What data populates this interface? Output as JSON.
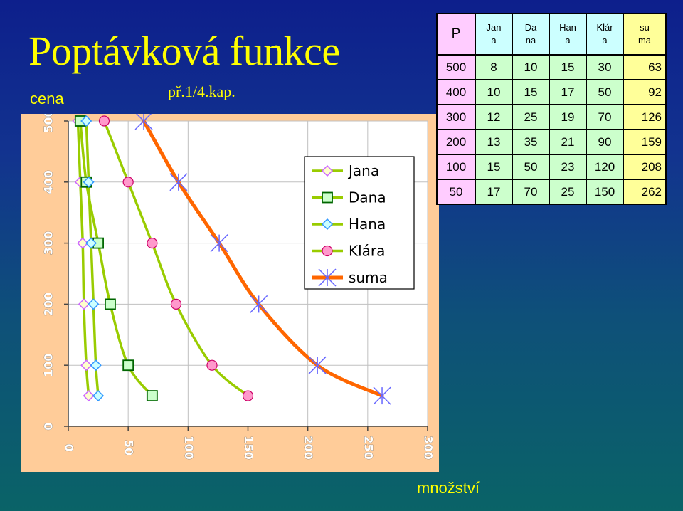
{
  "slide": {
    "title": "Poptávková funkce",
    "subtitle": "př.1/4.kap.",
    "y_axis_label": "cena",
    "x_axis_label": "množství"
  },
  "table": {
    "headers": [
      "P",
      "Jan\na",
      "Da\nna",
      "Han\na",
      "Klár\na",
      "su\nma"
    ],
    "rows": [
      [
        "500",
        "8",
        "10",
        "15",
        "30",
        "63"
      ],
      [
        "400",
        "10",
        "15",
        "17",
        "50",
        "92"
      ],
      [
        "300",
        "12",
        "25",
        "19",
        "70",
        "126"
      ],
      [
        "200",
        "13",
        "35",
        "21",
        "90",
        "159"
      ],
      [
        "100",
        "15",
        "50",
        "23",
        "120",
        "208"
      ],
      [
        "50",
        "17",
        "70",
        "25",
        "150",
        "262"
      ]
    ]
  },
  "chart_data": {
    "type": "line",
    "xlabel": "množství",
    "ylabel": "cena",
    "xlim": [
      0,
      300
    ],
    "ylim": [
      0,
      500
    ],
    "x_ticks": [
      "0",
      "50",
      "100",
      "150",
      "200",
      "250",
      "300"
    ],
    "y_ticks": [
      "0",
      "100",
      "200",
      "300",
      "400",
      "500"
    ],
    "grid": true,
    "legend_position": "top-right",
    "series": [
      {
        "name": "Jana",
        "marker": "diamond",
        "color": "#99cc00",
        "marker_fill": "#ffffcc",
        "marker_stroke": "#cc66ff",
        "points": [
          [
            8,
            500
          ],
          [
            10,
            400
          ],
          [
            12,
            300
          ],
          [
            13,
            200
          ],
          [
            15,
            100
          ],
          [
            17,
            50
          ]
        ]
      },
      {
        "name": "Dana",
        "marker": "square",
        "color": "#99cc00",
        "marker_fill": "#ccffcc",
        "marker_stroke": "#006600",
        "points": [
          [
            10,
            500
          ],
          [
            15,
            400
          ],
          [
            25,
            300
          ],
          [
            35,
            200
          ],
          [
            50,
            100
          ],
          [
            70,
            50
          ]
        ]
      },
      {
        "name": "Hana",
        "marker": "diamond",
        "color": "#99cc00",
        "marker_fill": "#ccffff",
        "marker_stroke": "#3399ff",
        "points": [
          [
            15,
            500
          ],
          [
            17,
            400
          ],
          [
            19,
            300
          ],
          [
            21,
            200
          ],
          [
            23,
            100
          ],
          [
            25,
            50
          ]
        ]
      },
      {
        "name": "Klára",
        "marker": "circle",
        "color": "#99cc00",
        "marker_fill": "#ff99cc",
        "marker_stroke": "#cc0066",
        "points": [
          [
            30,
            500
          ],
          [
            50,
            400
          ],
          [
            70,
            300
          ],
          [
            90,
            200
          ],
          [
            120,
            100
          ],
          [
            150,
            50
          ]
        ]
      },
      {
        "name": "suma",
        "marker": "star",
        "color": "#ff6600",
        "marker_fill": "none",
        "marker_stroke": "#6666ff",
        "points": [
          [
            63,
            500
          ],
          [
            92,
            400
          ],
          [
            126,
            300
          ],
          [
            159,
            200
          ],
          [
            208,
            100
          ],
          [
            262,
            50
          ]
        ]
      }
    ]
  }
}
